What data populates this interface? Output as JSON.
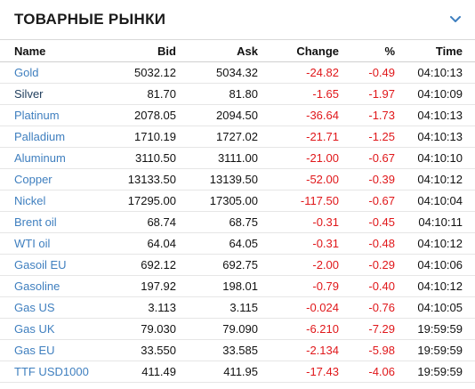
{
  "widget": {
    "title": "ТОВАРНЫЕ РЫНКИ",
    "expand_icon": "chevron-down-icon"
  },
  "colors": {
    "link": "#3f7fbf",
    "negative": "#e0171a"
  },
  "table": {
    "headers": {
      "name": "Name",
      "bid": "Bid",
      "ask": "Ask",
      "change": "Change",
      "pct": "%",
      "time": "Time"
    },
    "rows": [
      {
        "name": "Gold",
        "bid": "5032.12",
        "ask": "5034.32",
        "change": "-24.82",
        "pct": "-0.49",
        "time": "04:10:13"
      },
      {
        "name": "Silver",
        "bid": "81.70",
        "ask": "81.80",
        "change": "-1.65",
        "pct": "-1.97",
        "time": "04:10:09"
      },
      {
        "name": "Platinum",
        "bid": "2078.05",
        "ask": "2094.50",
        "change": "-36.64",
        "pct": "-1.73",
        "time": "04:10:13"
      },
      {
        "name": "Palladium",
        "bid": "1710.19",
        "ask": "1727.02",
        "change": "-21.71",
        "pct": "-1.25",
        "time": "04:10:13"
      },
      {
        "name": "Aluminum",
        "bid": "3110.50",
        "ask": "3111.00",
        "change": "-21.00",
        "pct": "-0.67",
        "time": "04:10:10"
      },
      {
        "name": "Copper",
        "bid": "13133.50",
        "ask": "13139.50",
        "change": "-52.00",
        "pct": "-0.39",
        "time": "04:10:12"
      },
      {
        "name": "Nickel",
        "bid": "17295.00",
        "ask": "17305.00",
        "change": "-117.50",
        "pct": "-0.67",
        "time": "04:10:04"
      },
      {
        "name": "Brent oil",
        "bid": "68.74",
        "ask": "68.75",
        "change": "-0.31",
        "pct": "-0.45",
        "time": "04:10:11"
      },
      {
        "name": "WTI oil",
        "bid": "64.04",
        "ask": "64.05",
        "change": "-0.31",
        "pct": "-0.48",
        "time": "04:10:12"
      },
      {
        "name": "Gasoil EU",
        "bid": "692.12",
        "ask": "692.75",
        "change": "-2.00",
        "pct": "-0.29",
        "time": "04:10:06"
      },
      {
        "name": "Gasoline",
        "bid": "197.92",
        "ask": "198.01",
        "change": "-0.79",
        "pct": "-0.40",
        "time": "04:10:12"
      },
      {
        "name": "Gas US",
        "bid": "3.113",
        "ask": "3.115",
        "change": "-0.024",
        "pct": "-0.76",
        "time": "04:10:05"
      },
      {
        "name": "Gas UK",
        "bid": "79.030",
        "ask": "79.090",
        "change": "-6.210",
        "pct": "-7.29",
        "time": "19:59:59"
      },
      {
        "name": "Gas EU",
        "bid": "33.550",
        "ask": "33.585",
        "change": "-2.134",
        "pct": "-5.98",
        "time": "19:59:59"
      },
      {
        "name": "TTF USD1000",
        "bid": "411.49",
        "ask": "411.95",
        "change": "-17.43",
        "pct": "-4.06",
        "time": "19:59:59"
      }
    ]
  }
}
